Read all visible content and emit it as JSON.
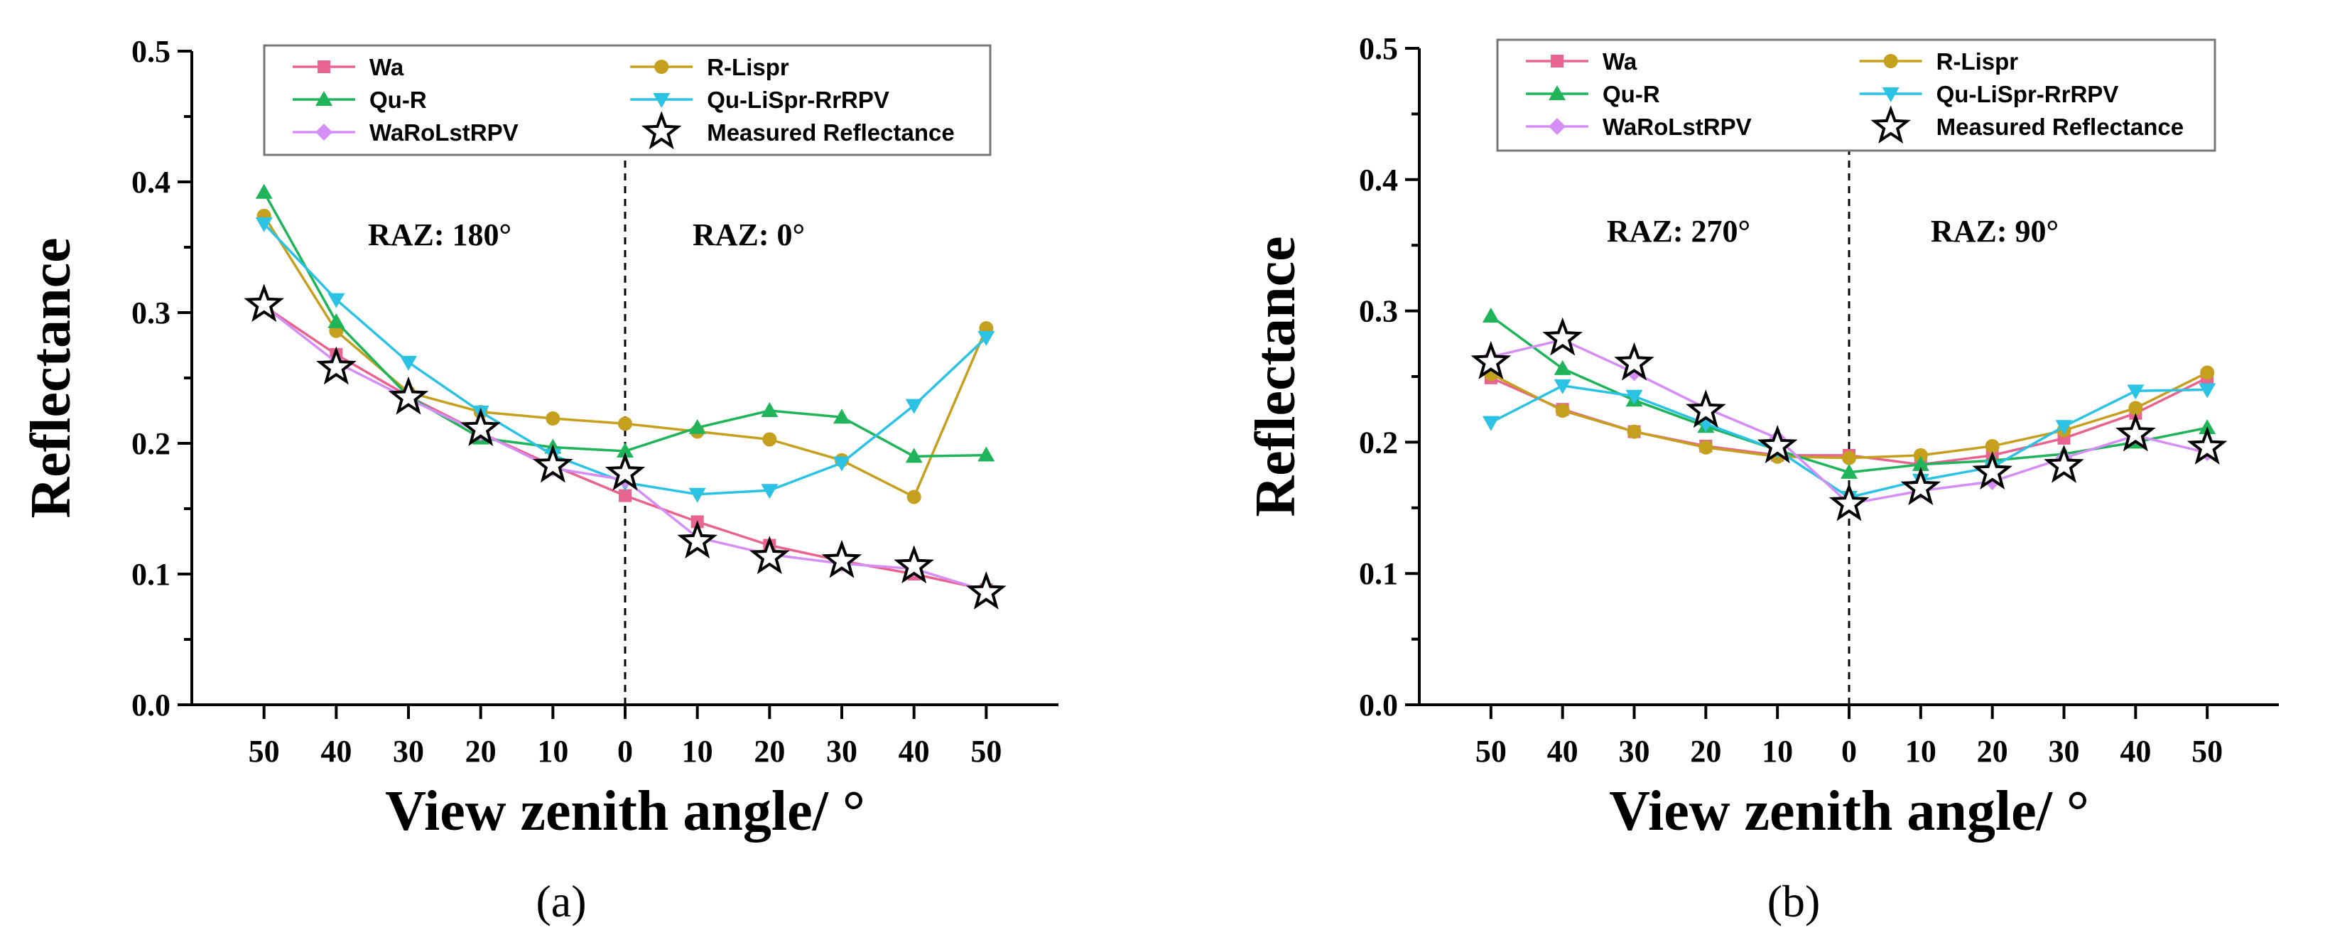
{
  "chart_data": [
    {
      "type": "line",
      "panel_label": "(a)",
      "xlabel": "View zenith angle/ °",
      "ylabel": "Reflectance",
      "ylim": [
        0.0,
        0.5
      ],
      "yticks": [
        "0.0",
        "0.1",
        "0.2",
        "0.3",
        "0.4",
        "0.5"
      ],
      "categories": [
        "50",
        "40",
        "30",
        "20",
        "10",
        "0",
        "10",
        "20",
        "30",
        "40",
        "50"
      ],
      "annotations": {
        "left": "RAZ:  180°",
        "right": "RAZ:   0°"
      },
      "series": [
        {
          "name": "Wa",
          "color": "#e8638f",
          "marker": "square",
          "values": [
            0.305,
            0.268,
            0.236,
            0.208,
            0.183,
            0.16,
            0.14,
            0.122,
            0.11,
            0.1,
            0.088
          ]
        },
        {
          "name": "R-Lispr",
          "color": "#c4a01e",
          "marker": "circle",
          "values": [
            0.374,
            0.286,
            0.239,
            0.224,
            0.219,
            0.215,
            0.209,
            0.203,
            0.187,
            0.159,
            0.288
          ]
        },
        {
          "name": "Qu-R",
          "color": "#1fb45a",
          "marker": "triangle-up",
          "values": [
            0.392,
            0.293,
            0.236,
            0.204,
            0.197,
            0.194,
            0.212,
            0.225,
            0.22,
            0.19,
            0.191
          ]
        },
        {
          "name": "Qu-LiSpr-RrRPV",
          "color": "#2bc2e4",
          "marker": "triangle-down",
          "values": [
            0.368,
            0.31,
            0.262,
            0.224,
            0.191,
            0.17,
            0.161,
            0.164,
            0.185,
            0.229,
            0.281
          ]
        },
        {
          "name": "WaRoLstRPV",
          "color": "#d58ef5",
          "marker": "diamond",
          "values": [
            0.305,
            0.262,
            0.234,
            0.208,
            0.181,
            0.172,
            0.128,
            0.115,
            0.108,
            0.104,
            0.087
          ]
        },
        {
          "name": "Measured Reflectance",
          "color": "#000000",
          "marker": "star",
          "values": [
            0.306,
            0.258,
            0.235,
            0.211,
            0.183,
            0.177,
            0.125,
            0.113,
            0.11,
            0.106,
            0.086
          ]
        }
      ]
    },
    {
      "type": "line",
      "panel_label": "(b)",
      "xlabel": "View zenith angle/ °",
      "ylabel": "Reflectance",
      "ylim": [
        0.0,
        0.5
      ],
      "yticks": [
        "0.0",
        "0.1",
        "0.2",
        "0.3",
        "0.4",
        "0.5"
      ],
      "categories": [
        "50",
        "40",
        "30",
        "20",
        "10",
        "0",
        "10",
        "20",
        "30",
        "40",
        "50"
      ],
      "annotations": {
        "left": "RAZ:  270°",
        "right": "RAZ:   90°"
      },
      "series": [
        {
          "name": "Wa",
          "color": "#e8638f",
          "marker": "square",
          "values": [
            0.249,
            0.225,
            0.208,
            0.197,
            0.19,
            0.19,
            0.183,
            0.19,
            0.203,
            0.222,
            0.249
          ]
        },
        {
          "name": "R-Lispr",
          "color": "#c4a01e",
          "marker": "circle",
          "values": [
            0.252,
            0.224,
            0.208,
            0.196,
            0.189,
            0.188,
            0.19,
            0.197,
            0.209,
            0.226,
            0.253
          ]
        },
        {
          "name": "Qu-R",
          "color": "#1fb45a",
          "marker": "triangle-up",
          "values": [
            0.296,
            0.256,
            0.232,
            0.212,
            0.194,
            0.177,
            0.183,
            0.186,
            0.191,
            0.2,
            0.211
          ]
        },
        {
          "name": "Qu-LiSpr-RrRPV",
          "color": "#2bc2e4",
          "marker": "triangle-down",
          "values": [
            0.215,
            0.243,
            0.235,
            0.214,
            0.194,
            0.158,
            0.171,
            0.181,
            0.212,
            0.239,
            0.24
          ]
        },
        {
          "name": "WaRoLstRPV",
          "color": "#d58ef5",
          "marker": "diamond",
          "values": [
            0.265,
            0.278,
            0.253,
            0.226,
            0.203,
            0.153,
            0.163,
            0.17,
            0.188,
            0.205,
            0.192
          ]
        },
        {
          "name": "Measured Reflectance",
          "color": "#000000",
          "marker": "star",
          "values": [
            0.261,
            0.279,
            0.26,
            0.224,
            0.197,
            0.153,
            0.165,
            0.177,
            0.182,
            0.206,
            0.196
          ]
        }
      ]
    }
  ]
}
